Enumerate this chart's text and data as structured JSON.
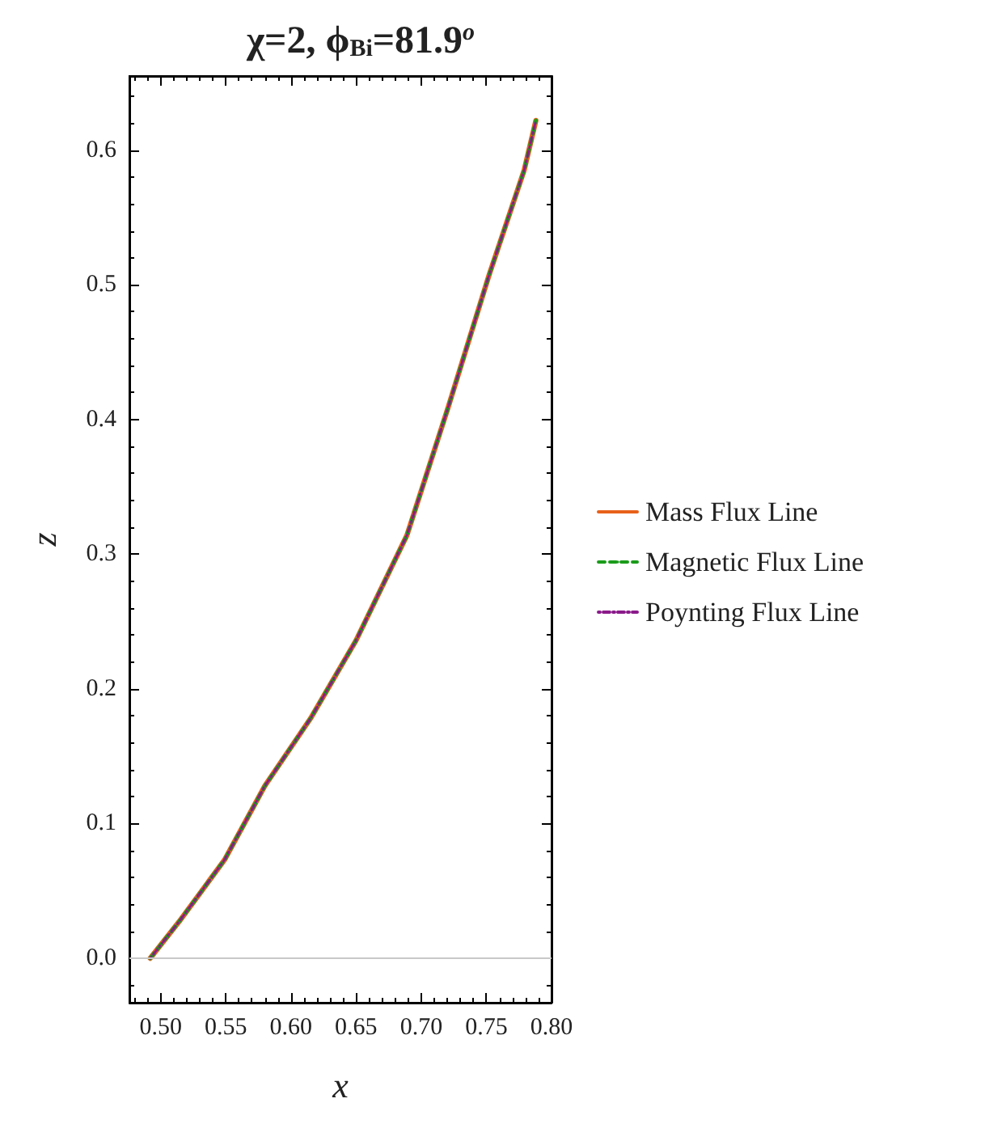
{
  "chart_data": {
    "type": "line",
    "title": "χ=2, ϕ$_{Bi}$=81.9$^{o}$",
    "xlabel": "x",
    "ylabel": "z",
    "x": [
      0.492,
      0.514,
      0.549,
      0.58,
      0.615,
      0.65,
      0.689,
      0.721,
      0.752,
      0.779,
      0.788
    ],
    "series": [
      {
        "name": "Mass Flux Line",
        "color": "#e8611a",
        "line_style": "solid",
        "values": [
          0,
          0.027,
          0.073,
          0.128,
          0.178,
          0.236,
          0.314,
          0.41,
          0.507,
          0.585,
          0.622
        ]
      },
      {
        "name": "Magnetic Flux Line",
        "color": "#1a9c1a",
        "line_style": "dashed",
        "values": [
          0,
          0.027,
          0.073,
          0.128,
          0.178,
          0.236,
          0.314,
          0.41,
          0.507,
          0.585,
          0.622
        ]
      },
      {
        "name": "Poynting Flux Line",
        "color": "#8b1a8b",
        "line_style": "dotted",
        "values": [
          0,
          0.027,
          0.073,
          0.128,
          0.178,
          0.236,
          0.314,
          0.41,
          0.507,
          0.585,
          0.622
        ]
      }
    ],
    "xlim": [
      0.476,
      0.8
    ],
    "ylim": [
      -0.033,
      0.655
    ],
    "xticks": [
      {
        "value": 0.5,
        "label": "0.50"
      },
      {
        "value": 0.55,
        "label": "0.55"
      },
      {
        "value": 0.6,
        "label": "0.60"
      },
      {
        "value": 0.65,
        "label": "0.65"
      },
      {
        "value": 0.7,
        "label": "0.70"
      },
      {
        "value": 0.75,
        "label": "0.75"
      },
      {
        "value": 0.8,
        "label": "0.80"
      }
    ],
    "yticks": [
      {
        "value": 0,
        "label": "0.0"
      },
      0.1,
      0.2,
      0.3,
      0.4,
      0.5,
      0.6
    ],
    "ref_lines": [
      {
        "axis": "y",
        "value": 0,
        "color": "#c8c8c8"
      }
    ],
    "grid": false,
    "legend": "right",
    "marker": "none"
  }
}
